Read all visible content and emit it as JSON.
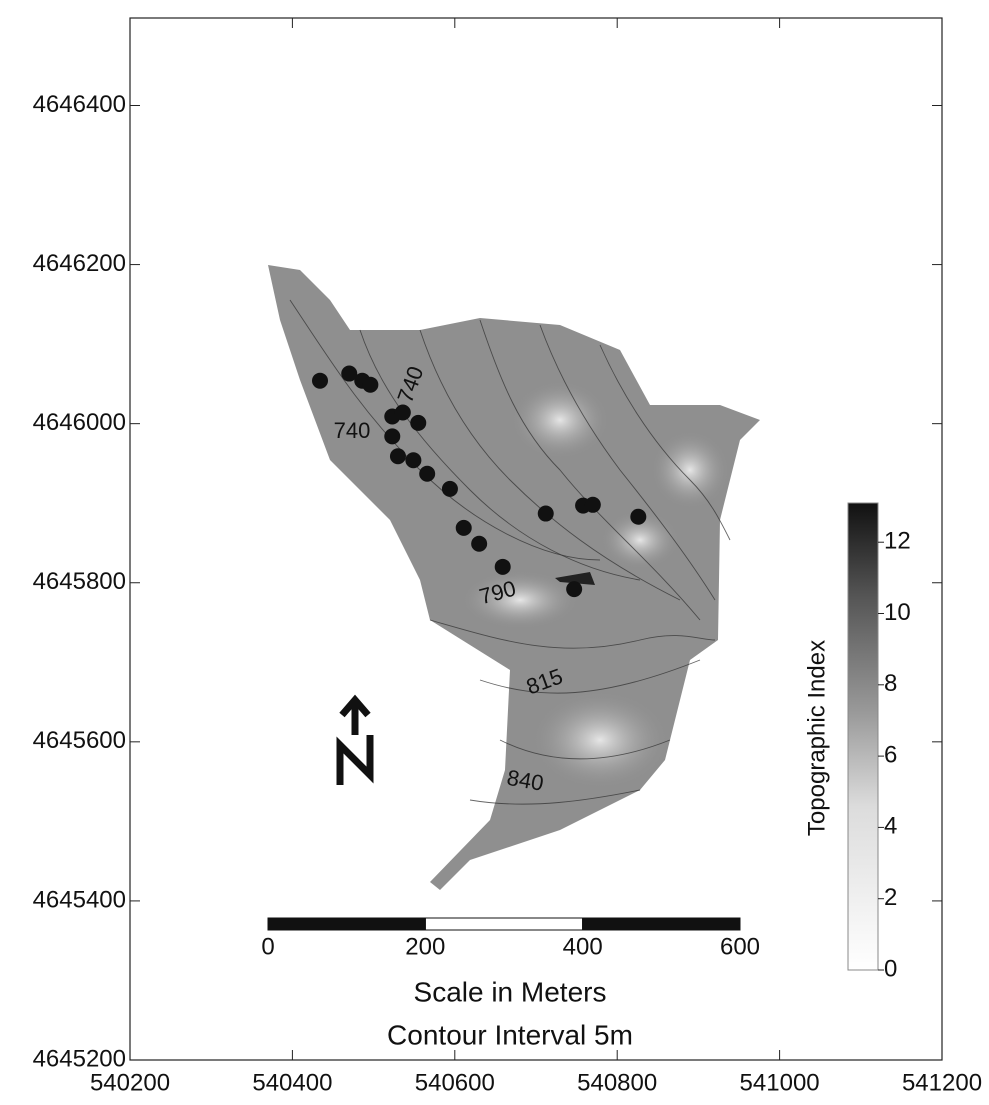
{
  "chart_data": {
    "type": "scatter",
    "x": [
      540434,
      540470,
      540486,
      540496,
      540523,
      540536,
      540555,
      540523,
      540530,
      540549,
      540566,
      540594,
      540611,
      540630,
      540659,
      540712,
      540758,
      540770,
      540826,
      540747
    ],
    "values": [
      4646054,
      4646063,
      4646054,
      4646049,
      4646009,
      4646014,
      4646001,
      4645984,
      4645959,
      4645954,
      4645937,
      4645918,
      4645869,
      4645849,
      4645820,
      4645887,
      4645897,
      4645898,
      4645883,
      4645792
    ],
    "color": "#111111",
    "xlim": [
      540200,
      541200
    ],
    "ylim": [
      4645200,
      4646510
    ],
    "xticks": [
      540200,
      540400,
      540600,
      540800,
      541000,
      541200
    ],
    "yticks": [
      4645200,
      4645400,
      4645600,
      4645800,
      4646000,
      4646200,
      4646400
    ],
    "contour_labels": [
      "740",
      "740",
      "790",
      "815",
      "840"
    ],
    "north_label": "N",
    "colorbar": {
      "label": "Topographic Index",
      "lim": [
        0,
        13.1
      ],
      "ticks": [
        0,
        2,
        4,
        6,
        8,
        10,
        12
      ]
    },
    "scale_bar": {
      "lim": [
        0,
        600
      ],
      "ticks": [
        0,
        200,
        400,
        600
      ],
      "title": "Scale in Meters"
    },
    "note": "Contour Interval 5m"
  }
}
